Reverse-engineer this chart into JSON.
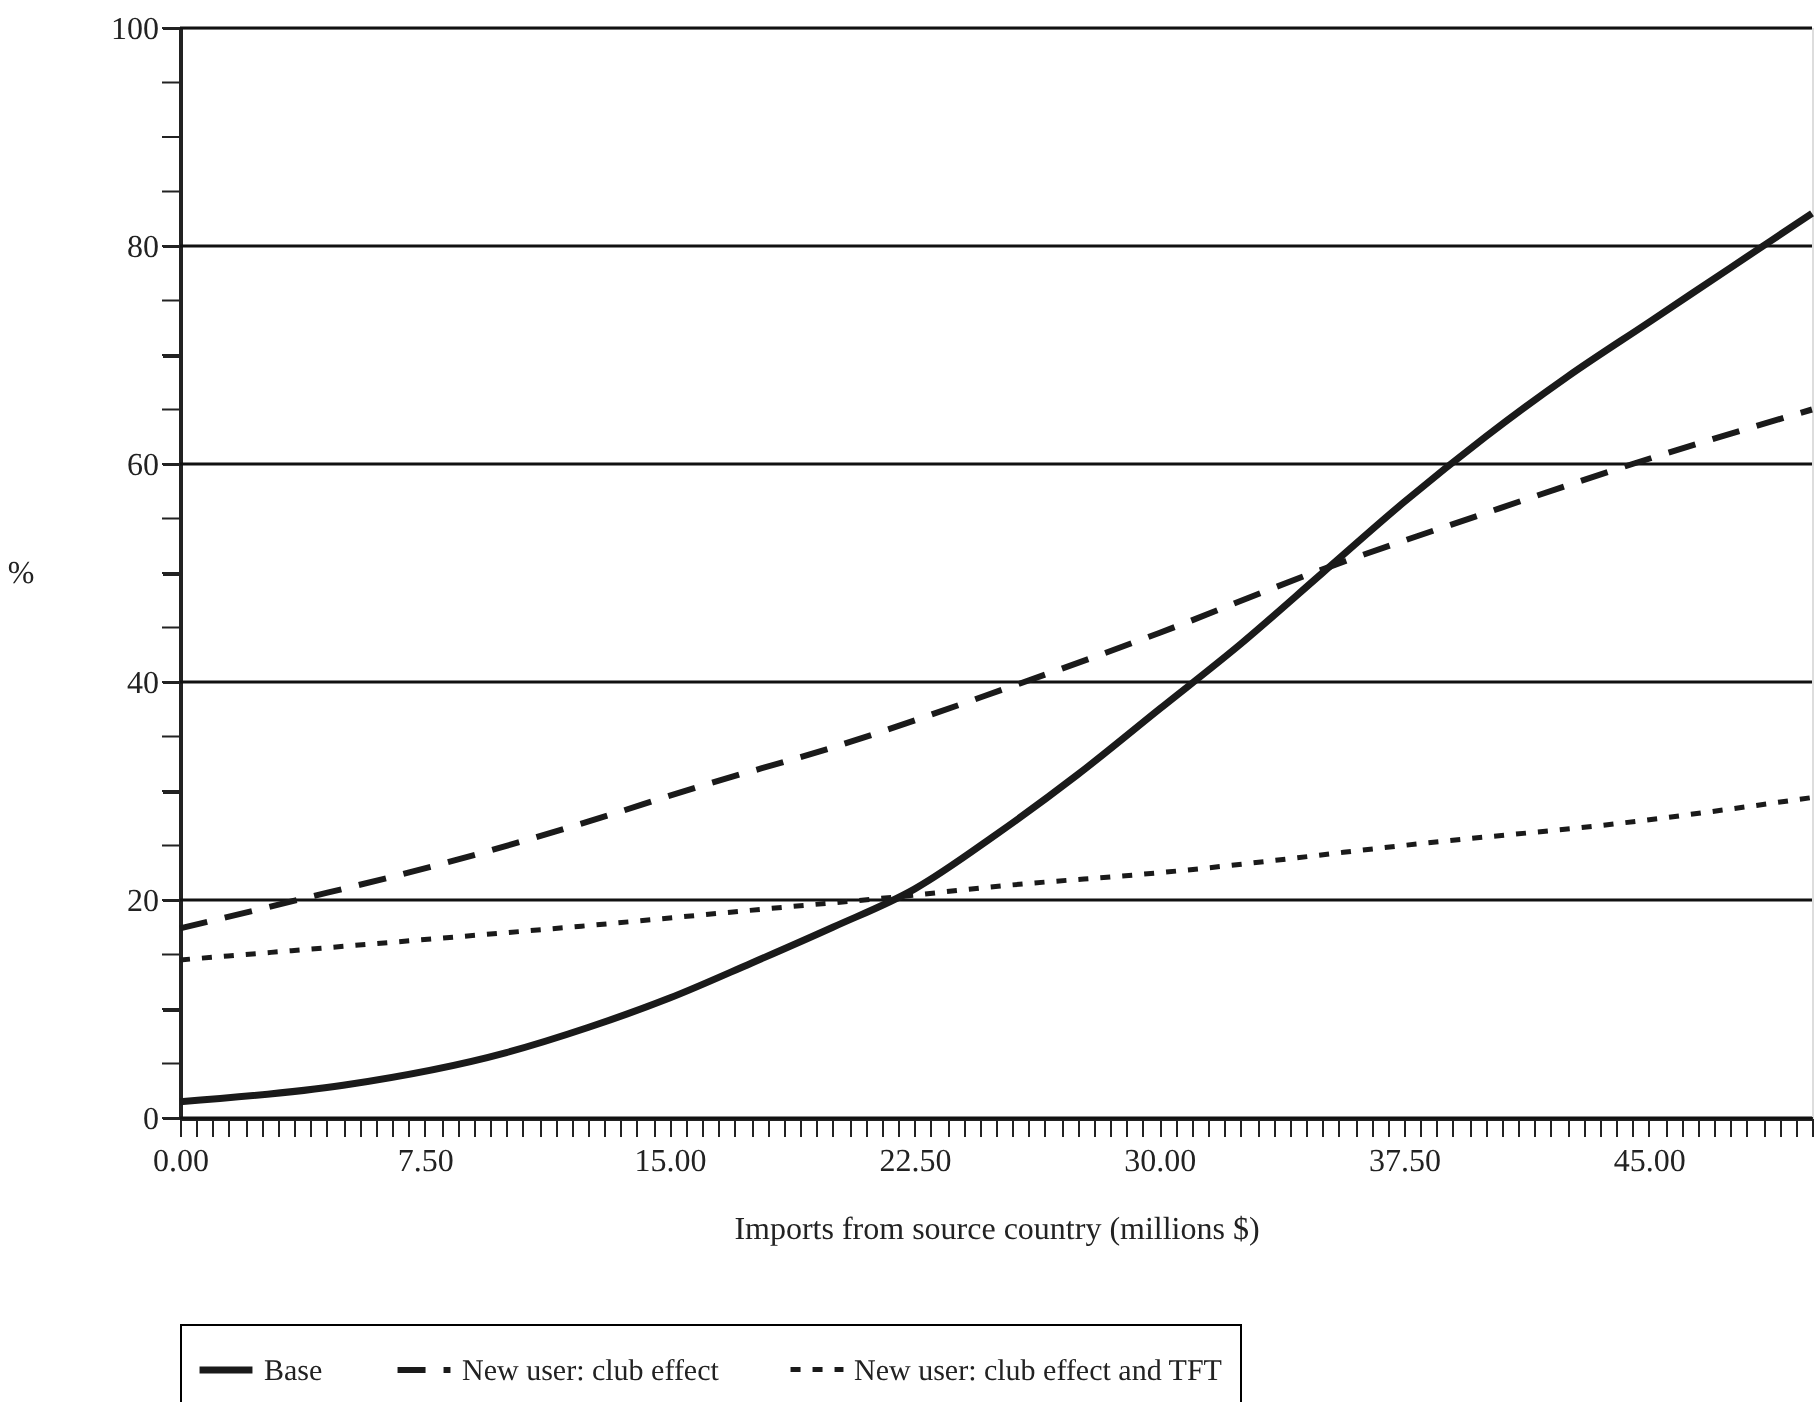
{
  "chart_data": {
    "type": "line",
    "xlabel": "Imports from source country (millions $)",
    "ylabel": "%",
    "xlim": [
      0,
      50
    ],
    "ylim": [
      0,
      100
    ],
    "xticks": [
      {
        "value": 0,
        "label": "0.00"
      },
      {
        "value": 7.5,
        "label": "7.50"
      },
      {
        "value": 15,
        "label": "15.00"
      },
      {
        "value": 22.5,
        "label": "22.50"
      },
      {
        "value": 30,
        "label": "30.00"
      },
      {
        "value": 37.5,
        "label": "37.50"
      },
      {
        "value": 45,
        "label": "45.00"
      },
      {
        "value": 0.5,
        "label": null
      },
      {
        "value": 1,
        "label": null
      },
      {
        "value": 1.5,
        "label": null
      },
      {
        "value": 2,
        "label": null
      },
      {
        "value": 2.5,
        "label": null
      },
      {
        "value": 3,
        "label": null
      },
      {
        "value": 3.5,
        "label": null
      },
      {
        "value": 4,
        "label": null
      },
      {
        "value": 4.5,
        "label": null
      },
      {
        "value": 5,
        "label": null
      },
      {
        "value": 5.5,
        "label": null
      },
      {
        "value": 6,
        "label": null
      },
      {
        "value": 6.5,
        "label": null
      },
      {
        "value": 7,
        "label": null
      },
      {
        "value": 8,
        "label": null
      },
      {
        "value": 8.5,
        "label": null
      },
      {
        "value": 9,
        "label": null
      },
      {
        "value": 9.5,
        "label": null
      },
      {
        "value": 10,
        "label": null
      },
      {
        "value": 10.5,
        "label": null
      },
      {
        "value": 11,
        "label": null
      },
      {
        "value": 11.5,
        "label": null
      },
      {
        "value": 12,
        "label": null
      },
      {
        "value": 12.5,
        "label": null
      },
      {
        "value": 13,
        "label": null
      },
      {
        "value": 13.5,
        "label": null
      },
      {
        "value": 14,
        "label": null
      },
      {
        "value": 14.5,
        "label": null
      },
      {
        "value": 15.5,
        "label": null
      },
      {
        "value": 16,
        "label": null
      },
      {
        "value": 16.5,
        "label": null
      },
      {
        "value": 17,
        "label": null
      },
      {
        "value": 17.5,
        "label": null
      },
      {
        "value": 18,
        "label": null
      },
      {
        "value": 18.5,
        "label": null
      },
      {
        "value": 19,
        "label": null
      },
      {
        "value": 19.5,
        "label": null
      },
      {
        "value": 20,
        "label": null
      },
      {
        "value": 20.5,
        "label": null
      },
      {
        "value": 21,
        "label": null
      },
      {
        "value": 21.5,
        "label": null
      },
      {
        "value": 22,
        "label": null
      },
      {
        "value": 23,
        "label": null
      },
      {
        "value": 23.5,
        "label": null
      },
      {
        "value": 24,
        "label": null
      },
      {
        "value": 24.5,
        "label": null
      },
      {
        "value": 25,
        "label": null
      },
      {
        "value": 25.5,
        "label": null
      },
      {
        "value": 26,
        "label": null
      },
      {
        "value": 26.5,
        "label": null
      },
      {
        "value": 27,
        "label": null
      },
      {
        "value": 27.5,
        "label": null
      },
      {
        "value": 28,
        "label": null
      },
      {
        "value": 28.5,
        "label": null
      },
      {
        "value": 29,
        "label": null
      },
      {
        "value": 29.5,
        "label": null
      },
      {
        "value": 30.5,
        "label": null
      },
      {
        "value": 31,
        "label": null
      },
      {
        "value": 31.5,
        "label": null
      },
      {
        "value": 32,
        "label": null
      },
      {
        "value": 32.5,
        "label": null
      },
      {
        "value": 33,
        "label": null
      },
      {
        "value": 33.5,
        "label": null
      },
      {
        "value": 34,
        "label": null
      },
      {
        "value": 34.5,
        "label": null
      },
      {
        "value": 35,
        "label": null
      },
      {
        "value": 35.5,
        "label": null
      },
      {
        "value": 36,
        "label": null
      },
      {
        "value": 36.5,
        "label": null
      },
      {
        "value": 37,
        "label": null
      },
      {
        "value": 38,
        "label": null
      },
      {
        "value": 38.5,
        "label": null
      },
      {
        "value": 39,
        "label": null
      },
      {
        "value": 39.5,
        "label": null
      },
      {
        "value": 40,
        "label": null
      },
      {
        "value": 40.5,
        "label": null
      },
      {
        "value": 41,
        "label": null
      },
      {
        "value": 41.5,
        "label": null
      },
      {
        "value": 42,
        "label": null
      },
      {
        "value": 42.5,
        "label": null
      },
      {
        "value": 43,
        "label": null
      },
      {
        "value": 43.5,
        "label": null
      },
      {
        "value": 44,
        "label": null
      },
      {
        "value": 44.5,
        "label": null
      },
      {
        "value": 45.5,
        "label": null
      },
      {
        "value": 46,
        "label": null
      },
      {
        "value": 46.5,
        "label": null
      },
      {
        "value": 47,
        "label": null
      },
      {
        "value": 47.5,
        "label": null
      },
      {
        "value": 48,
        "label": null
      },
      {
        "value": 48.5,
        "label": null
      },
      {
        "value": 49,
        "label": null
      },
      {
        "value": 49.5,
        "label": null
      },
      {
        "value": 50,
        "label": null
      }
    ],
    "yticks": [
      0,
      20,
      40,
      60,
      80,
      100,
      {
        "value": 5,
        "label": null
      },
      {
        "value": 10,
        "label": null
      },
      {
        "value": 15,
        "label": null
      },
      {
        "value": 25,
        "label": null
      },
      {
        "value": 30,
        "label": null
      },
      {
        "value": 35,
        "label": null
      },
      {
        "value": 45,
        "label": null
      },
      {
        "value": 50,
        "label": null
      },
      {
        "value": 55,
        "label": null
      },
      {
        "value": 65,
        "label": null
      },
      {
        "value": 70,
        "label": null
      },
      {
        "value": 75,
        "label": null
      },
      {
        "value": 85,
        "label": null
      },
      {
        "value": 90,
        "label": null
      },
      {
        "value": 95,
        "label": null
      }
    ],
    "grid": "y",
    "legend": "bottom",
    "marker": "none",
    "series": [
      {
        "name": "Base",
        "color": "#1a1a1a",
        "line_style": "solid",
        "x": [
          0,
          5,
          10,
          12.5,
          15,
          17.5,
          20,
          22.5,
          25,
          27.5,
          30,
          32.5,
          35,
          37.5,
          40,
          42.5,
          45,
          47.5,
          50
        ],
        "values": [
          1.5,
          3,
          6,
          8.3,
          11,
          14.2,
          17.5,
          21,
          26,
          31.5,
          37.5,
          43.5,
          50,
          56.5,
          62.5,
          68,
          73,
          78,
          83
        ]
      },
      {
        "name": "New user: club effect",
        "color": "#1a1a1a",
        "line_style": "dashed",
        "x": [
          0,
          3.6,
          8,
          12.3,
          16,
          20,
          25.2,
          30,
          34.7,
          40,
          44.5,
          50
        ],
        "values": [
          17.4,
          20,
          23.3,
          27,
          30.5,
          34,
          39.3,
          44.5,
          50,
          55.5,
          60,
          65
        ]
      },
      {
        "name": "New user: club effect and TFT",
        "color": "#1a1a1a",
        "line_style": "dotted",
        "x": [
          0,
          6,
          12.3,
          18,
          22,
          25.2,
          30,
          38.4,
          44,
          50
        ],
        "values": [
          14.5,
          16,
          17.6,
          19.2,
          20.3,
          21.3,
          22.5,
          25.3,
          27,
          29.4
        ]
      }
    ]
  }
}
